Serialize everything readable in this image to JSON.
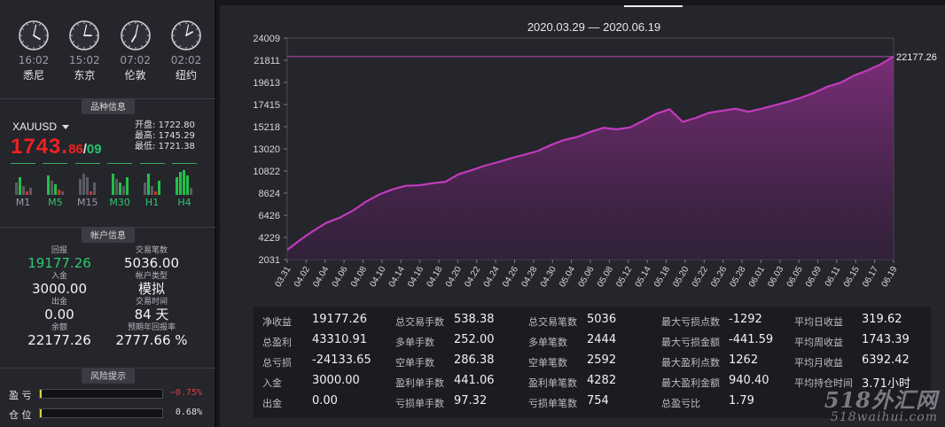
{
  "clocks": [
    {
      "time": "16:02",
      "city": "悉尼",
      "hour": 16,
      "minute": 2
    },
    {
      "time": "15:02",
      "city": "东京",
      "hour": 15,
      "minute": 2
    },
    {
      "time": "07:02",
      "city": "伦敦",
      "hour": 7,
      "minute": 2
    },
    {
      "time": "02:02",
      "city": "纽约",
      "hour": 2,
      "minute": 2
    }
  ],
  "sections": {
    "symbol": "品种信息",
    "account": "帐户信息",
    "risk": "风险提示"
  },
  "symbol": {
    "name": "XAUUSD",
    "price_main": "1743.",
    "price_frac": "86",
    "slash": "/",
    "price_alt": "09",
    "open_label": "开盘:",
    "open": "1722.80",
    "high_label": "最高:",
    "high": "1745.29",
    "low_label": "最低:",
    "low": "1721.38"
  },
  "timeframes": [
    {
      "label": "M1",
      "label_color": "#9a9aa2",
      "bars": [
        [
          "x",
          14
        ],
        [
          "g",
          20
        ],
        [
          "x",
          10
        ],
        [
          "r",
          4
        ],
        [
          "x",
          8
        ]
      ]
    },
    {
      "label": "M5",
      "label_color": "#2fc76c",
      "bars": [
        [
          "g",
          22
        ],
        [
          "x",
          16
        ],
        [
          "g",
          12
        ],
        [
          "r",
          6
        ],
        [
          "x",
          4
        ]
      ]
    },
    {
      "label": "M15",
      "label_color": "#9a9aa2",
      "bars": [
        [
          "x",
          18
        ],
        [
          "x",
          24
        ],
        [
          "x",
          20
        ],
        [
          "r",
          4
        ],
        [
          "x",
          14
        ]
      ]
    },
    {
      "label": "M30",
      "label_color": "#2fc76c",
      "bars": [
        [
          "g",
          24
        ],
        [
          "x",
          18
        ],
        [
          "g",
          14
        ],
        [
          "x",
          10
        ],
        [
          "g",
          20
        ]
      ]
    },
    {
      "label": "H1",
      "label_color": "#2fc76c",
      "bars": [
        [
          "x",
          14
        ],
        [
          "g",
          24
        ],
        [
          "x",
          10
        ],
        [
          "r",
          4
        ],
        [
          "g",
          16
        ]
      ]
    },
    {
      "label": "H4",
      "label_color": "#2fc76c",
      "bars": [
        [
          "g",
          20
        ],
        [
          "g",
          26
        ],
        [
          "g",
          28
        ],
        [
          "g",
          22
        ],
        [
          "x",
          8
        ]
      ]
    }
  ],
  "account": {
    "left": [
      {
        "key": "回报",
        "value": "19177.26",
        "green": true
      },
      {
        "key": "入金",
        "value": "3000.00"
      },
      {
        "key": "出金",
        "value": "0.00"
      },
      {
        "key": "余额",
        "value": "22177.26"
      }
    ],
    "right": [
      {
        "key": "交易笔数",
        "value": "5036.00"
      },
      {
        "key": "帐户类型",
        "value": "模拟"
      },
      {
        "key": "交易时间",
        "value": "84 天"
      },
      {
        "key": "预期年回报率",
        "value": "2777.66 %"
      }
    ]
  },
  "risk": [
    {
      "label": "盈 亏",
      "value": "−0.75%",
      "level": 0.0075,
      "color": "#e23b3b"
    },
    {
      "label": "仓 位",
      "value": "0.68%",
      "level": 0.0068,
      "color": "#e0e0e0"
    }
  ],
  "chart_data": {
    "type": "area",
    "title": "2020.03.29 — 2020.06.19",
    "y_ticks": [
      "24009",
      "21811",
      "19613",
      "17415",
      "15218",
      "13020",
      "10822",
      "8624",
      "6426",
      "4229",
      "2031"
    ],
    "ylim": [
      2031,
      24009
    ],
    "x_ticks": [
      "03.31",
      "04.02",
      "04.04",
      "04.06",
      "04.08",
      "04.10",
      "04.14",
      "04.16",
      "04.18",
      "04.20",
      "04.22",
      "04.24",
      "04.26",
      "04.28",
      "04.30",
      "05.04",
      "05.06",
      "05.08",
      "05.12",
      "05.14",
      "05.18",
      "05.20",
      "05.22",
      "05.26",
      "05.28",
      "06.01",
      "06.03",
      "06.05",
      "06.09",
      "06.11",
      "06.15",
      "06.17",
      "06.19"
    ],
    "last_value_label": "22177.26",
    "reference_value": 22177.26,
    "values": [
      3000,
      4000,
      4900,
      5700,
      6200,
      6900,
      7800,
      8500,
      9000,
      9350,
      9400,
      9600,
      9750,
      10500,
      10900,
      11350,
      11700,
      12100,
      12450,
      12800,
      13400,
      13900,
      14200,
      14700,
      15100,
      14950,
      15150,
      15800,
      16500,
      16950,
      15700,
      16100,
      16600,
      16800,
      17000,
      16700,
      17000,
      17350,
      17700,
      18100,
      18600,
      19200,
      19600,
      20300,
      20800,
      21400,
      22177.26
    ]
  },
  "stats": [
    [
      {
        "k": "净收益",
        "v": "19177.26"
      },
      {
        "k": "总交易手数",
        "v": "538.38"
      },
      {
        "k": "总交易笔数",
        "v": "5036"
      },
      {
        "k": "最大亏损点数",
        "v": "-1292"
      },
      {
        "k": "平均日收益",
        "v": "319.62"
      }
    ],
    [
      {
        "k": "总盈利",
        "v": "43310.91"
      },
      {
        "k": "多单手数",
        "v": "252.00"
      },
      {
        "k": "多单笔数",
        "v": "2444"
      },
      {
        "k": "最大亏损金额",
        "v": "-441.59"
      },
      {
        "k": "平均周收益",
        "v": "1743.39"
      }
    ],
    [
      {
        "k": "总亏损",
        "v": "-24133.65"
      },
      {
        "k": "空单手数",
        "v": "286.38"
      },
      {
        "k": "空单笔数",
        "v": "2592"
      },
      {
        "k": "最大盈利点数",
        "v": "1262"
      },
      {
        "k": "平均月收益",
        "v": "6392.42"
      }
    ],
    [
      {
        "k": "入金",
        "v": "3000.00"
      },
      {
        "k": "盈利单手数",
        "v": "441.06"
      },
      {
        "k": "盈利单笔数",
        "v": "4282"
      },
      {
        "k": "最大盈利金额",
        "v": "940.40"
      },
      {
        "k": "平均持仓时间",
        "v": "3.71小时"
      }
    ],
    [
      {
        "k": "出金",
        "v": "0.00"
      },
      {
        "k": "亏损单手数",
        "v": "97.32"
      },
      {
        "k": "亏损单笔数",
        "v": "754"
      },
      {
        "k": "总盈亏比",
        "v": "1.79"
      }
    ]
  ],
  "watermark": {
    "line1": "518外汇网",
    "line2": "518waihui.com"
  }
}
